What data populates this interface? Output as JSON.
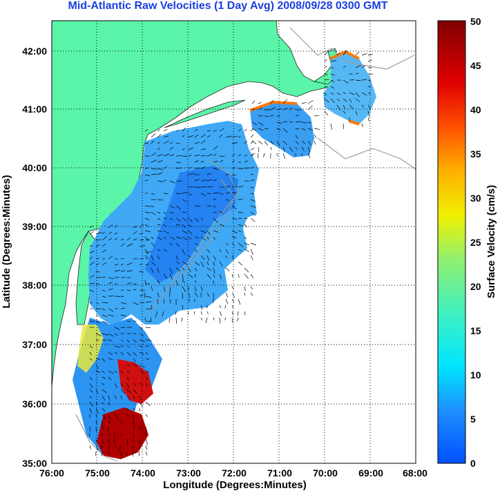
{
  "title": "Mid-Atlantic Raw Velocities (1 Day Avg) 2008/09/28 0300 GMT",
  "map": {
    "xlabel": "Longitude (Degrees:Minutes)",
    "ylabel": "Latitude (Degrees:Minutes)",
    "lon_ticks": [
      "76:00",
      "75:00",
      "74:00",
      "73:00",
      "72:00",
      "71:00",
      "70:00",
      "69:00",
      "68:00"
    ],
    "lat_ticks": [
      "42:00",
      "41:00",
      "40:00",
      "39:00",
      "38:00",
      "37:00",
      "36:00",
      "35:00"
    ],
    "land_color": "#5af5a8",
    "grid": true
  },
  "colorbar": {
    "label": "Surface Velocity (cm/s)",
    "ticks": [
      "50",
      "45",
      "40",
      "35",
      "30",
      "25",
      "20",
      "15",
      "10",
      "5",
      "0"
    ],
    "min": 0,
    "max": 50
  }
}
